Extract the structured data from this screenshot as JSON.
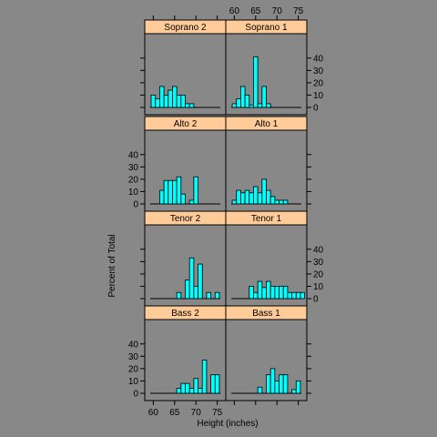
{
  "colors": {
    "background": "#888888",
    "strip": "#ffcc99",
    "bar": "#00ffff",
    "line": "#000000"
  },
  "chart_data": {
    "type": "bar",
    "subtype": "histogram-trellis",
    "xlabel": "Height (inches)",
    "ylabel": "Percent of Total",
    "xlim": [
      58,
      77
    ],
    "ylim": [
      0,
      45
    ],
    "x_ticks": [
      60,
      65,
      70,
      75
    ],
    "y_ticks": [
      0,
      10,
      20,
      30,
      40
    ],
    "bin_width": 1,
    "layout": "2 columns x 4 rows",
    "panels": [
      {
        "name": "Soprano 2",
        "bins": [
          60,
          61,
          62,
          63,
          64,
          65,
          66,
          67,
          68,
          69
        ],
        "values": [
          10,
          7,
          17,
          10,
          14,
          17,
          10,
          10,
          3,
          3
        ]
      },
      {
        "name": "Soprano 1",
        "bins": [
          60,
          61,
          62,
          63,
          64,
          65,
          66,
          67,
          68
        ],
        "values": [
          3,
          7,
          17,
          10,
          2,
          41,
          3,
          17,
          3
        ]
      },
      {
        "name": "Alto 2",
        "bins": [
          62,
          63,
          64,
          65,
          66,
          67,
          68,
          69,
          70
        ],
        "values": [
          11,
          19,
          19,
          19,
          22,
          8,
          0,
          3,
          22
        ]
      },
      {
        "name": "Alto 1",
        "bins": [
          60,
          61,
          62,
          63,
          64,
          65,
          66,
          67,
          68,
          69,
          70,
          71,
          72
        ],
        "values": [
          3,
          11,
          9,
          11,
          9,
          14,
          9,
          20,
          11,
          6,
          3,
          3,
          3
        ]
      },
      {
        "name": "Tenor 2",
        "bins": [
          66,
          67,
          68,
          69,
          70,
          71,
          72,
          73,
          74,
          75
        ],
        "values": [
          5,
          0,
          15,
          33,
          10,
          28,
          0,
          5,
          0,
          5
        ]
      },
      {
        "name": "Tenor 1",
        "bins": [
          64,
          65,
          66,
          67,
          68,
          69,
          70,
          71,
          72,
          73,
          74,
          75,
          76
        ],
        "values": [
          10,
          5,
          14,
          9,
          14,
          10,
          10,
          10,
          10,
          5,
          5,
          5,
          5
        ]
      },
      {
        "name": "Bass 2",
        "bins": [
          66,
          67,
          68,
          69,
          70,
          71,
          72,
          73,
          74,
          75
        ],
        "values": [
          4,
          8,
          8,
          4,
          12,
          4,
          27,
          0,
          15,
          15
        ]
      },
      {
        "name": "Bass 1",
        "bins": [
          66,
          67,
          68,
          69,
          70,
          71,
          72,
          73,
          74,
          75
        ],
        "values": [
          5,
          0,
          15,
          20,
          10,
          15,
          15,
          0,
          3,
          10
        ]
      }
    ]
  }
}
